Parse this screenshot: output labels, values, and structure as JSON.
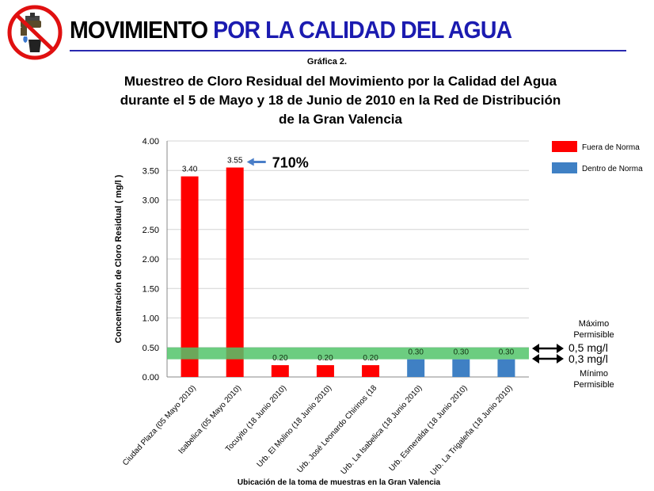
{
  "header": {
    "title_part1": "MOVIMIENTO",
    "title_part2": "POR LA CALIDAD",
    "title_part3": "DEL AGUA",
    "title_part4": "",
    "logo_icon": "no-water-tap-icon"
  },
  "figure_label": "Gráfica 2.",
  "chart_title_lines": [
    "Muestreo de Cloro Residual del Movimiento por la Calidad del Agua",
    "durante el 5 de Mayo y 18 de Junio de 2010 en la Red de Distribución",
    "de la Gran Valencia"
  ],
  "chart_data": {
    "type": "bar",
    "categories": [
      "Ciudad Plaza (05 Mayo 2010)",
      "Isabelica (05 Mayo 2010)",
      "Tocuyito (18 Junio 2010)",
      "Urb. El Molino  (18 Junio 2010)",
      "Urb. José Leonardo Chirinos (18",
      "Urb. La Isabelica (18 Junio 2010)",
      "Urb. Esmeralda (18 Junio 2010)",
      "Urb. La Trigaleña (18 Junio 2010)"
    ],
    "values": [
      3.4,
      3.55,
      0.2,
      0.2,
      0.2,
      0.3,
      0.3,
      0.3
    ],
    "data_labels": [
      "3.40",
      "3.55",
      "0.20",
      "0.20",
      "0.20",
      "0.30",
      "0.30",
      "0.30"
    ],
    "status": [
      "fuera",
      "fuera",
      "fuera",
      "fuera",
      "fuera",
      "dentro",
      "dentro",
      "dentro"
    ],
    "legend": [
      {
        "key": "fuera",
        "name": "Fuera de Norma",
        "color": "#ff0000"
      },
      {
        "key": "dentro",
        "name": "Dentro de Norma",
        "color": "#3f80c4"
      }
    ],
    "legend_position": "top-right",
    "ylabel": "Concentración de Cloro Residual ( mg/l  )",
    "xlabel": "Ubicación de la toma de muestras en  la Gran Valencia",
    "ylim": [
      0,
      4
    ],
    "yticks": [
      0,
      0.5,
      1,
      1.5,
      2,
      2.5,
      3,
      3.5,
      4
    ],
    "ytick_labels": [
      "0.00",
      "0.50",
      "1.00",
      "1.50",
      "2.00",
      "2.50",
      "3.00",
      "3.50",
      "4.00"
    ],
    "grid": "horizontal",
    "band": {
      "low": 0.3,
      "high": 0.5,
      "color": "#52c46a"
    },
    "annotation": {
      "text": "710%",
      "target_index": 1
    },
    "band_labels": {
      "max_label_line1": "Máximo",
      "max_label_line2": "Permisible",
      "max_value": "0,5 mg/l",
      "min_value": "0,3 mg/l",
      "min_label_line1": "Mínimo",
      "min_label_line2": "Permisible"
    }
  }
}
